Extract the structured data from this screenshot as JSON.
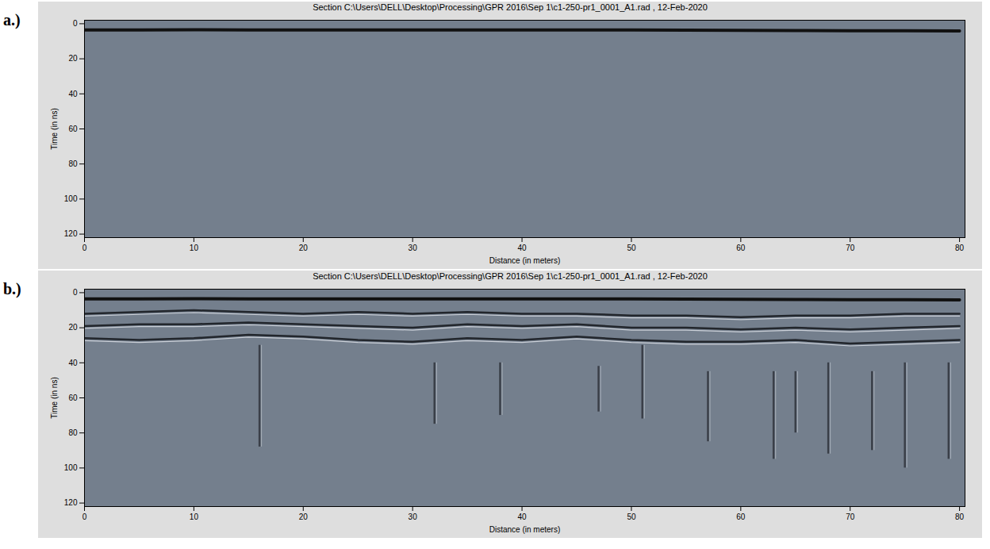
{
  "chart_data": [
    {
      "type": "line",
      "panel_label": "a.)",
      "title": "Section C:\\Users\\DELL\\Desktop\\Processing\\GPR 2016\\Sep 1\\c1-250-pr1_0001_A1.rad , 12-Feb-2020",
      "x_label": "Distance (in meters)",
      "y_label": "Time (in ns)",
      "x": [
        0,
        5,
        10,
        15,
        20,
        25,
        30,
        35,
        40,
        45,
        50,
        55,
        60,
        65,
        70,
        75,
        80
      ],
      "series": [
        {
          "color": "#111111",
          "values": [
            3.5,
            3.5,
            3.4,
            3.5,
            3.5,
            3.6,
            3.5,
            3.5,
            3.6,
            3.5,
            3.6,
            3.7,
            3.8,
            3.9,
            4.0,
            4.0,
            4.1
          ]
        }
      ],
      "xlim": [
        0,
        80.5
      ],
      "xticks": [
        0,
        10,
        20,
        30,
        40,
        50,
        60,
        70,
        80
      ],
      "ylim": [
        -2,
        122
      ],
      "yticks": [
        0,
        20,
        40,
        60,
        80,
        100,
        120
      ],
      "grid": false
    },
    {
      "type": "line",
      "panel_label": "b.)",
      "title": "Section C:\\Users\\DELL\\Desktop\\Processing\\GPR 2016\\Sep 1\\c1-250-pr1_0001_A1.rad , 12-Feb-2020",
      "x_label": "Distance (in meters)",
      "y_label": "Time (in ns)",
      "x": [
        0,
        5,
        10,
        15,
        20,
        25,
        30,
        35,
        40,
        45,
        50,
        55,
        60,
        65,
        70,
        75,
        80
      ],
      "series": [
        {
          "color": "#111111",
          "values": [
            3.5,
            3.5,
            3.4,
            3.5,
            3.5,
            3.6,
            3.5,
            3.5,
            3.6,
            3.5,
            3.6,
            3.7,
            3.8,
            3.9,
            4.0,
            4.0,
            4.1
          ]
        },
        {
          "color": "#22262c",
          "values": [
            12,
            11,
            10,
            11,
            12,
            11,
            12,
            11,
            12,
            12,
            13,
            13,
            14,
            13,
            13,
            12,
            12
          ]
        },
        {
          "color": "#22262c",
          "values": [
            19,
            18,
            18,
            17,
            18,
            19,
            20,
            18,
            19,
            18,
            20,
            20,
            21,
            20,
            21,
            20,
            19
          ]
        },
        {
          "color": "#22262c",
          "values": [
            26,
            27,
            26,
            24,
            25,
            27,
            28,
            26,
            27,
            25,
            27,
            28,
            28,
            27,
            29,
            28,
            27
          ]
        }
      ],
      "vertical_streaks": {
        "x": [
          16,
          32,
          38,
          47,
          51,
          57,
          63,
          65,
          68,
          72,
          75,
          79
        ],
        "t_start": [
          30,
          40,
          40,
          42,
          30,
          45,
          45,
          45,
          40,
          45,
          40,
          40
        ],
        "t_end": [
          88,
          75,
          70,
          68,
          72,
          85,
          95,
          80,
          92,
          90,
          100,
          95
        ]
      },
      "xlim": [
        0,
        80.5
      ],
      "xticks": [
        0,
        10,
        20,
        30,
        40,
        50,
        60,
        70,
        80
      ],
      "ylim": [
        -2,
        122
      ],
      "yticks": [
        0,
        20,
        40,
        60,
        80,
        100,
        120
      ],
      "grid": false
    }
  ]
}
